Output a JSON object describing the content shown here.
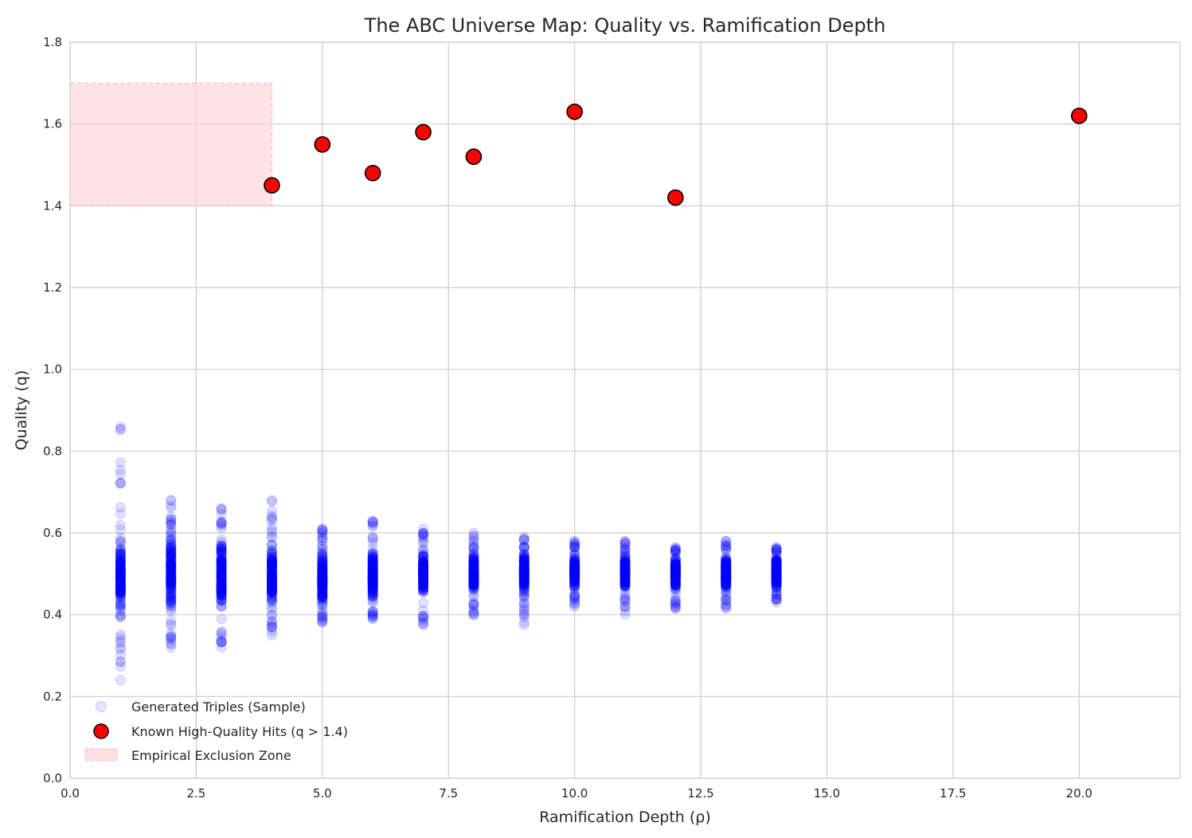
{
  "chart_data": {
    "type": "scatter",
    "title": "The ABC Universe Map: Quality vs. Ramification Depth",
    "xlabel": "Ramification Depth (ρ)",
    "ylabel": "Quality (q)",
    "xlim": [
      0,
      22
    ],
    "ylim": [
      0,
      1.8
    ],
    "x_ticks": [
      "0.0",
      "2.5",
      "5.0",
      "7.5",
      "10.0",
      "12.5",
      "15.0",
      "17.5",
      "20.0"
    ],
    "y_ticks": [
      "0.0",
      "0.2",
      "0.4",
      "0.6",
      "0.8",
      "1.0",
      "1.2",
      "1.4",
      "1.6",
      "1.8"
    ],
    "grid": true,
    "legend_position": "lower-left",
    "colors": {
      "generated": "#0000ff",
      "hits_fill": "#ff0000",
      "hits_edge": "#000000",
      "zone_fill": "#ffcccf"
    },
    "series": [
      {
        "name": "Generated Triples (Sample)",
        "kind": "scatter",
        "columns": [
          {
            "x": 1,
            "min": 0.24,
            "max": 0.86,
            "core_min": 0.37,
            "core_max": 0.62
          },
          {
            "x": 2,
            "min": 0.32,
            "max": 0.68,
            "core_min": 0.38,
            "core_max": 0.62
          },
          {
            "x": 3,
            "min": 0.32,
            "max": 0.66,
            "core_min": 0.39,
            "core_max": 0.61
          },
          {
            "x": 4,
            "min": 0.35,
            "max": 0.68,
            "core_min": 0.4,
            "core_max": 0.59
          },
          {
            "x": 5,
            "min": 0.38,
            "max": 0.61,
            "core_min": 0.41,
            "core_max": 0.58
          },
          {
            "x": 6,
            "min": 0.39,
            "max": 0.63,
            "core_min": 0.42,
            "core_max": 0.57
          },
          {
            "x": 7,
            "min": 0.375,
            "max": 0.61,
            "core_min": 0.43,
            "core_max": 0.57
          },
          {
            "x": 8,
            "min": 0.4,
            "max": 0.6,
            "core_min": 0.44,
            "core_max": 0.56
          },
          {
            "x": 9,
            "min": 0.375,
            "max": 0.59,
            "core_min": 0.44,
            "core_max": 0.56
          },
          {
            "x": 10,
            "min": 0.42,
            "max": 0.58,
            "core_min": 0.45,
            "core_max": 0.56
          },
          {
            "x": 11,
            "min": 0.4,
            "max": 0.58,
            "core_min": 0.45,
            "core_max": 0.555
          },
          {
            "x": 12,
            "min": 0.415,
            "max": 0.565,
            "core_min": 0.45,
            "core_max": 0.55
          },
          {
            "x": 13,
            "min": 0.415,
            "max": 0.58,
            "core_min": 0.45,
            "core_max": 0.55
          },
          {
            "x": 14,
            "min": 0.43,
            "max": 0.565,
            "core_min": 0.455,
            "core_max": 0.55
          }
        ]
      },
      {
        "name": "Known High-Quality Hits (q > 1.4)",
        "kind": "scatter",
        "points": [
          {
            "x": 4,
            "y": 1.45
          },
          {
            "x": 5,
            "y": 1.55
          },
          {
            "x": 6,
            "y": 1.48
          },
          {
            "x": 7,
            "y": 1.58
          },
          {
            "x": 8,
            "y": 1.52
          },
          {
            "x": 10,
            "y": 1.63
          },
          {
            "x": 12,
            "y": 1.42
          },
          {
            "x": 20,
            "y": 1.62
          }
        ]
      },
      {
        "name": "Empirical Exclusion Zone",
        "kind": "region",
        "x_range": [
          0,
          4
        ],
        "y_range": [
          1.4,
          1.7
        ]
      }
    ]
  }
}
